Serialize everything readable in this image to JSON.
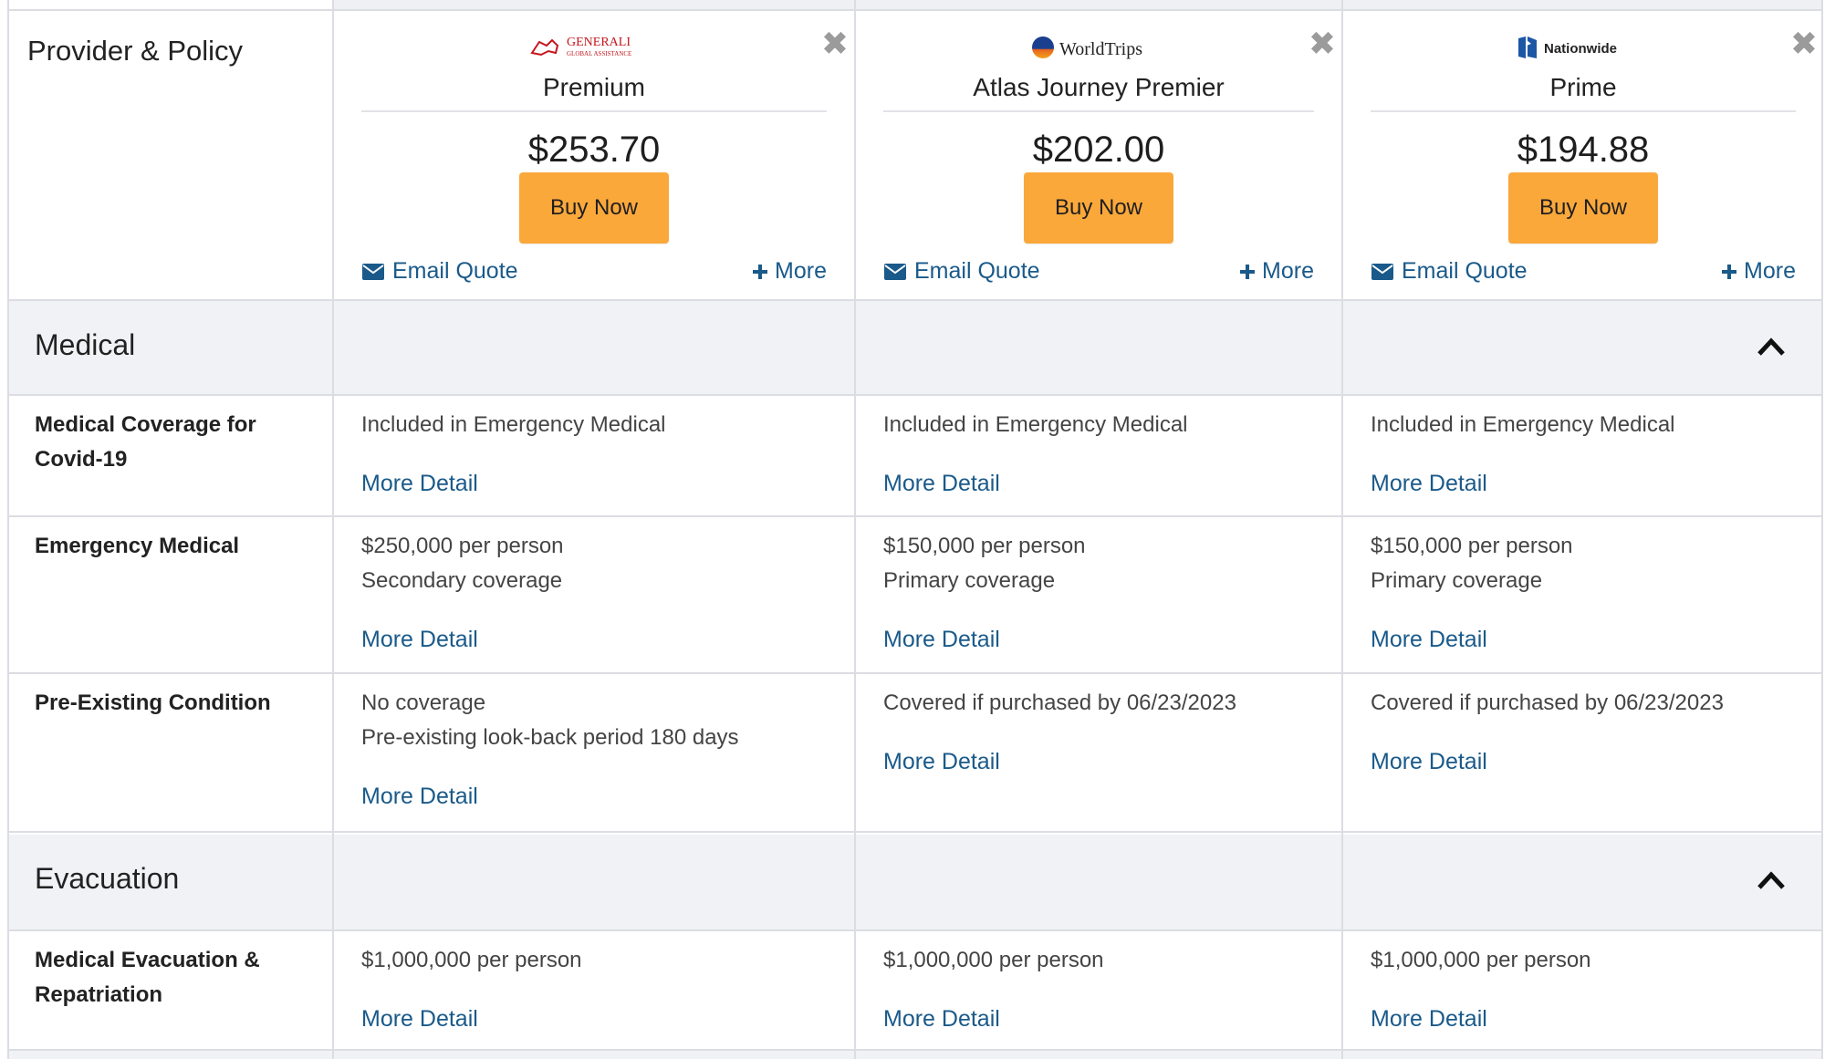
{
  "header_label": "Provider & Policy",
  "plans": [
    {
      "logo_text": "GENERALI",
      "logo_subtext": "GLOBAL ASSISTANCE",
      "logo_icon": "generali-lion-icon",
      "name": "Premium",
      "price": "$253.70",
      "buy_label": "Buy Now",
      "email_label": "Email Quote",
      "more_label": "More"
    },
    {
      "logo_text": "WorldTrips",
      "logo_icon": "worldtrips-globe-icon",
      "name": "Atlas Journey Premier",
      "price": "$202.00",
      "buy_label": "Buy Now",
      "email_label": "Email Quote",
      "more_label": "More"
    },
    {
      "logo_text": "Nationwide",
      "logo_icon": "nationwide-eagle-icon",
      "name": "Prime",
      "price": "$194.88",
      "buy_label": "Buy Now",
      "email_label": "Email Quote",
      "more_label": "More"
    }
  ],
  "sections": [
    {
      "title": "Medical",
      "rows": [
        {
          "label_lines": [
            "Medical Coverage for",
            "Covid-19"
          ],
          "cells": [
            {
              "lines": [
                "Included in Emergency Medical"
              ],
              "link": "More Detail"
            },
            {
              "lines": [
                "Included in Emergency Medical"
              ],
              "link": "More Detail"
            },
            {
              "lines": [
                "Included in Emergency Medical"
              ],
              "link": "More Detail"
            }
          ]
        },
        {
          "label_lines": [
            "Emergency Medical"
          ],
          "cells": [
            {
              "lines": [
                "$250,000 per person",
                "Secondary coverage"
              ],
              "link": "More Detail"
            },
            {
              "lines": [
                "$150,000 per person",
                "Primary coverage"
              ],
              "link": "More Detail"
            },
            {
              "lines": [
                "$150,000 per person",
                "Primary coverage"
              ],
              "link": "More Detail"
            }
          ]
        },
        {
          "label_lines": [
            "Pre-Existing Condition"
          ],
          "cells": [
            {
              "lines": [
                "No coverage",
                "Pre-existing look-back period 180 days"
              ],
              "link": "More Detail"
            },
            {
              "lines": [
                "Covered if purchased by 06/23/2023"
              ],
              "link": "More Detail"
            },
            {
              "lines": [
                "Covered if purchased by 06/23/2023"
              ],
              "link": "More Detail"
            }
          ]
        }
      ]
    },
    {
      "title": "Evacuation",
      "rows": [
        {
          "label_lines": [
            "Medical Evacuation &",
            "Repatriation"
          ],
          "cells": [
            {
              "lines": [
                "$1,000,000 per person"
              ],
              "link": "More Detail"
            },
            {
              "lines": [
                "$1,000,000 per person"
              ],
              "link": "More Detail"
            },
            {
              "lines": [
                "$1,000,000 per person"
              ],
              "link": "More Detail"
            }
          ]
        }
      ]
    }
  ],
  "colors": {
    "buy_button": "#fba83b",
    "link": "#1a5a8a",
    "section_bg": "#f1f2f5",
    "border": "#dcdde3"
  },
  "icons": {
    "email": "envelope-icon",
    "more": "plus-icon",
    "close": "close-icon",
    "collapse": "chevron-up-icon"
  }
}
